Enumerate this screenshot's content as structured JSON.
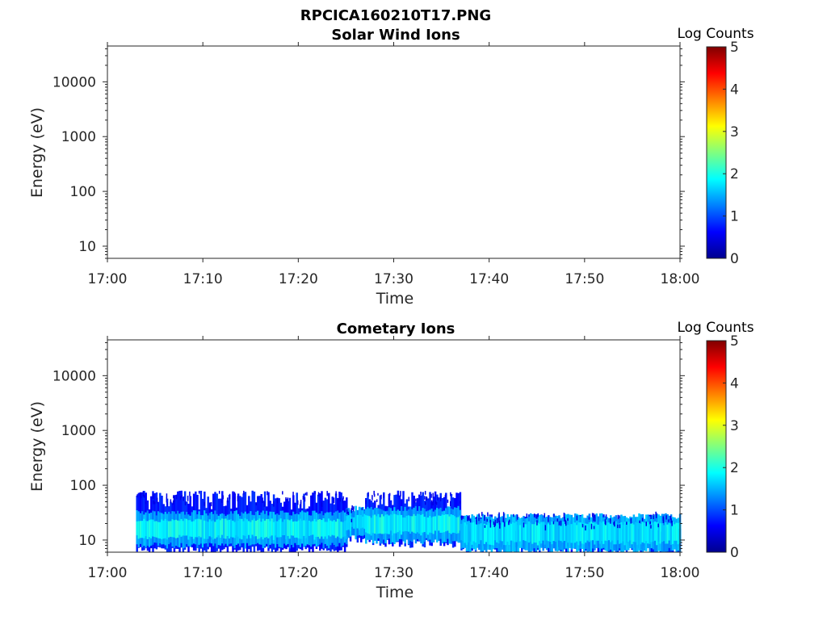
{
  "figure_title": "RPCICA160210T17.PNG",
  "chart_data": [
    {
      "type": "heatmap",
      "title": "Solar Wind Ions",
      "xlabel": "Time",
      "ylabel": "Energy (eV)",
      "x_ticks": [
        "17:00",
        "17:10",
        "17:20",
        "17:30",
        "17:40",
        "17:50",
        "18:00"
      ],
      "xlim": [
        "17:00",
        "18:00"
      ],
      "y_scale": "log",
      "y_ticks": [
        "10",
        "100",
        "1000",
        "10000"
      ],
      "ylim": [
        6,
        45000
      ],
      "colorbar": {
        "label": "Log Counts",
        "ticks": [
          "0",
          "1",
          "2",
          "3",
          "4",
          "5"
        ],
        "range": [
          0,
          5
        ],
        "colormap": "jet"
      },
      "data_present": false,
      "series": []
    },
    {
      "type": "heatmap",
      "title": "Cometary Ions",
      "xlabel": "Time",
      "ylabel": "Energy (eV)",
      "x_ticks": [
        "17:00",
        "17:10",
        "17:20",
        "17:30",
        "17:40",
        "17:50",
        "18:00"
      ],
      "xlim": [
        "17:00",
        "18:00"
      ],
      "y_scale": "log",
      "y_ticks": [
        "10",
        "100",
        "1000",
        "10000"
      ],
      "ylim": [
        6,
        45000
      ],
      "colorbar": {
        "label": "Log Counts",
        "ticks": [
          "0",
          "1",
          "2",
          "3",
          "4",
          "5"
        ],
        "range": [
          0,
          5
        ],
        "colormap": "jet"
      },
      "data_present": true,
      "time_range": [
        "17:03",
        "18:00"
      ],
      "energy_range_ev": [
        6,
        80
      ],
      "peak_energy_ev": 15,
      "peak_log_counts": 2,
      "segments": [
        {
          "time_start": "17:03",
          "time_end": "17:25",
          "energy_low_ev": 6,
          "energy_high_ev": 80,
          "core_energy_ev": [
            10,
            25
          ],
          "core_log_counts": 1.9
        },
        {
          "time_start": "17:25",
          "time_end": "17:27",
          "energy_low_ev": 10,
          "energy_high_ev": 40,
          "core_energy_ev": [
            14,
            30
          ],
          "core_log_counts": 1.7
        },
        {
          "time_start": "17:27",
          "time_end": "17:37",
          "energy_low_ev": 8,
          "energy_high_ev": 80,
          "core_energy_ev": [
            12,
            30
          ],
          "core_log_counts": 1.9
        },
        {
          "time_start": "17:37",
          "time_end": "18:00",
          "energy_low_ev": 6,
          "energy_high_ev": 30,
          "core_energy_ev": [
            8,
            22
          ],
          "core_log_counts": 1.8
        }
      ]
    }
  ]
}
